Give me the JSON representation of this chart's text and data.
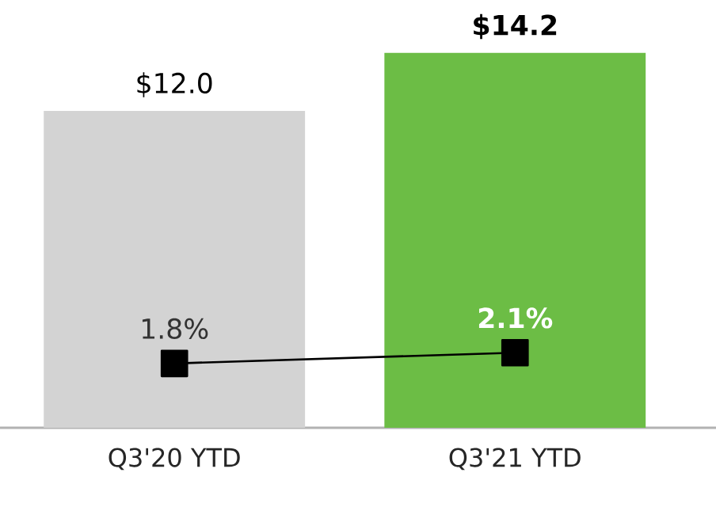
{
  "chart_data": {
    "type": "bar",
    "categories": [
      "Q3'20 YTD",
      "Q3'21 YTD"
    ],
    "tick_labels": "x",
    "series": [
      {
        "colors": [
          "#d3d3d3",
          "#6cbd45"
        ],
        "values": [
          12.0,
          14.2
        ],
        "value_labels": [
          "$12.0",
          "$14.2"
        ]
      },
      {
        "type": "line",
        "axis": "y2",
        "color": "#000000",
        "marker": "square",
        "line_style": "solid",
        "values": [
          1.8,
          2.1
        ],
        "value_labels": [
          "1.8%",
          "2.1%"
        ]
      }
    ]
  }
}
